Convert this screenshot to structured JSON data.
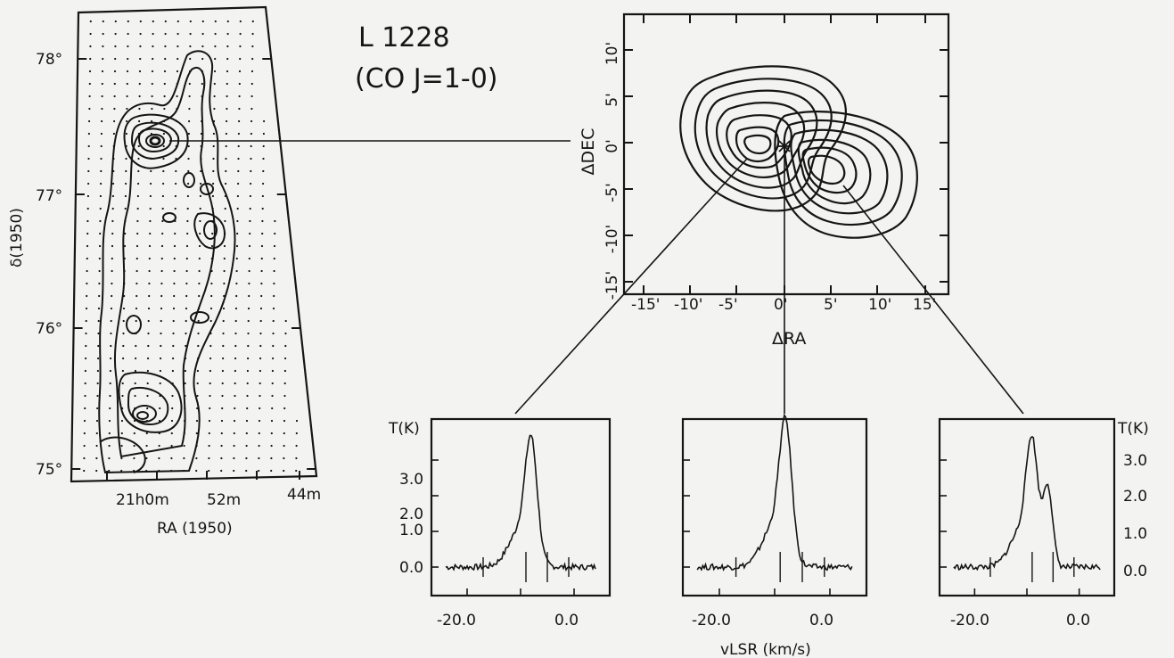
{
  "title": {
    "line1": "L 1228",
    "line2": "(CO  J=1-0)"
  },
  "map": {
    "ylabel": "δ(1950)",
    "xlabel": "RA (1950)",
    "yticks": [
      "78°",
      "77°",
      "76°",
      "75°"
    ],
    "xticks": [
      "21h0m",
      "52m",
      "44m"
    ]
  },
  "zoom": {
    "ylabel": "ΔDEC",
    "xlabel": "ΔRA",
    "xticks": [
      "-15'",
      "-10'",
      "-5'",
      "0'",
      "5'",
      "10'",
      "15'"
    ],
    "yticks": [
      "10'",
      "5'",
      "0'",
      "-5'",
      "-10'",
      "-15'"
    ]
  },
  "spectra": {
    "yunit": "T(K)",
    "yticks": [
      "3.0",
      "2.0",
      "1.0",
      "0.0"
    ],
    "xticks": [
      "-20.0",
      "0.0"
    ],
    "xlabel": "vLSR (km/s)",
    "panels": [
      {
        "id": "left",
        "peak_velocity": -8,
        "peak_T": 3.0,
        "baseline_T": 0.0
      },
      {
        "id": "center",
        "peak_velocity": -8,
        "peak_T": 3.4,
        "baseline_T": 0.0
      },
      {
        "id": "right",
        "peak_velocity": -9,
        "peak_T": 3.0,
        "second_peak_velocity": -6,
        "second_peak_T": 2.2,
        "baseline_T": 0.0
      }
    ]
  },
  "colors": {
    "ink": "#151515",
    "paper": "#f3f3f1"
  }
}
